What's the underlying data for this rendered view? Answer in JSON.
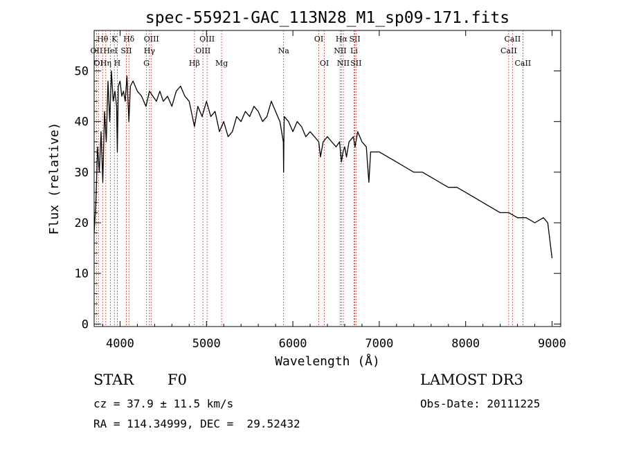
{
  "chart_data": {
    "type": "line",
    "title": "spec-55921-GAC_113N28_M1_sp09-171.fits",
    "xlabel": "Wavelength (Å)",
    "ylabel": "Flux (relative)",
    "xlim": [
      3700,
      9100
    ],
    "ylim": [
      -0.5,
      58
    ],
    "xticks": [
      4000,
      5000,
      6000,
      7000,
      8000,
      9000
    ],
    "yticks": [
      0,
      10,
      20,
      30,
      40,
      50
    ],
    "grid": false,
    "series": [
      {
        "name": "spectrum",
        "x": [
          3700,
          3720,
          3740,
          3760,
          3780,
          3800,
          3820,
          3840,
          3860,
          3880,
          3900,
          3920,
          3940,
          3960,
          3968,
          3980,
          4000,
          4020,
          4040,
          4060,
          4080,
          4102,
          4120,
          4150,
          4200,
          4250,
          4300,
          4340,
          4380,
          4420,
          4460,
          4500,
          4550,
          4600,
          4650,
          4700,
          4750,
          4800,
          4861,
          4900,
          4950,
          5000,
          5050,
          5100,
          5150,
          5200,
          5250,
          5300,
          5350,
          5400,
          5450,
          5500,
          5550,
          5600,
          5650,
          5700,
          5750,
          5800,
          5850,
          5890,
          5893,
          5896,
          5900,
          5950,
          6000,
          6050,
          6100,
          6150,
          6200,
          6250,
          6300,
          6320,
          6350,
          6400,
          6450,
          6500,
          6540,
          6563,
          6580,
          6600,
          6620,
          6650,
          6700,
          6720,
          6750,
          6800,
          6850,
          6880,
          6900,
          6950,
          7000,
          7100,
          7200,
          7300,
          7400,
          7500,
          7600,
          7700,
          7800,
          7900,
          8000,
          8100,
          8200,
          8300,
          8400,
          8500,
          8600,
          8700,
          8800,
          8900,
          8950,
          9000
        ],
        "y": [
          18,
          24,
          35,
          30,
          38,
          28,
          42,
          36,
          48,
          40,
          50,
          44,
          46,
          43,
          34,
          47,
          48,
          45,
          46,
          44,
          49,
          40,
          47,
          48,
          46,
          45,
          43,
          46,
          45,
          44,
          46,
          44,
          45,
          43,
          46,
          47,
          45,
          44,
          39,
          43,
          41,
          44,
          41,
          42,
          38,
          40,
          37,
          38,
          41,
          40,
          42,
          41,
          43,
          42,
          40,
          41,
          44,
          42,
          40,
          36,
          30,
          36,
          41,
          40,
          38,
          40,
          39,
          37,
          38,
          37,
          36,
          33,
          36,
          37,
          36,
          35,
          36,
          32,
          34,
          35,
          33,
          36,
          37,
          35,
          38,
          36,
          35,
          28,
          34,
          34,
          34,
          33,
          32,
          31,
          30,
          30,
          29,
          28,
          27,
          27,
          26,
          25,
          24,
          23,
          22,
          22,
          21,
          21,
          20,
          21,
          20,
          13
        ]
      }
    ],
    "line_labels": [
      {
        "text": "Hθ",
        "x": 3798,
        "row": 1
      },
      {
        "text": "K",
        "x": 3934,
        "row": 1
      },
      {
        "text": "Hδ",
        "x": 4102,
        "row": 1
      },
      {
        "text": "OIII",
        "x": 4363,
        "row": 1
      },
      {
        "text": "OIII",
        "x": 5007,
        "row": 1
      },
      {
        "text": "OI",
        "x": 6300,
        "row": 1
      },
      {
        "text": "Hα",
        "x": 6563,
        "row": 1
      },
      {
        "text": "SII",
        "x": 6717,
        "row": 1
      },
      {
        "text": "CaII",
        "x": 8542,
        "row": 1
      },
      {
        "text": "OII",
        "x": 3727,
        "row": 2
      },
      {
        "text": "HeI",
        "x": 3889,
        "row": 2
      },
      {
        "text": "SII",
        "x": 4072,
        "row": 2
      },
      {
        "text": "Hγ",
        "x": 4340,
        "row": 2
      },
      {
        "text": "OIII",
        "x": 4959,
        "row": 2
      },
      {
        "text": "Na",
        "x": 5893,
        "row": 2
      },
      {
        "text": "NII",
        "x": 6548,
        "row": 2
      },
      {
        "text": "Li",
        "x": 6708,
        "row": 2
      },
      {
        "text": "CaII",
        "x": 8498,
        "row": 2
      },
      {
        "text": "OI",
        "x": 3750,
        "row": 3
      },
      {
        "text": "Hη",
        "x": 3835,
        "row": 3
      },
      {
        "text": "H",
        "x": 3968,
        "row": 3
      },
      {
        "text": "G",
        "x": 4305,
        "row": 3
      },
      {
        "text": "Hβ",
        "x": 4861,
        "row": 3
      },
      {
        "text": "Mg",
        "x": 5175,
        "row": 3
      },
      {
        "text": "OI",
        "x": 6364,
        "row": 3
      },
      {
        "text": "NII",
        "x": 6584,
        "row": 3
      },
      {
        "text": "SII",
        "x": 6731,
        "row": 3
      },
      {
        "text": "CaII",
        "x": 8662,
        "row": 3
      }
    ]
  },
  "info": {
    "object_class": "STAR",
    "subclass": "F0",
    "survey": "LAMOST DR3",
    "redshift": "cz = 37.9 ± 11.5 km/s",
    "obs_date": "Obs-Date: 20111225",
    "coords": "RA = 114.34999, DEC =  29.52432"
  }
}
